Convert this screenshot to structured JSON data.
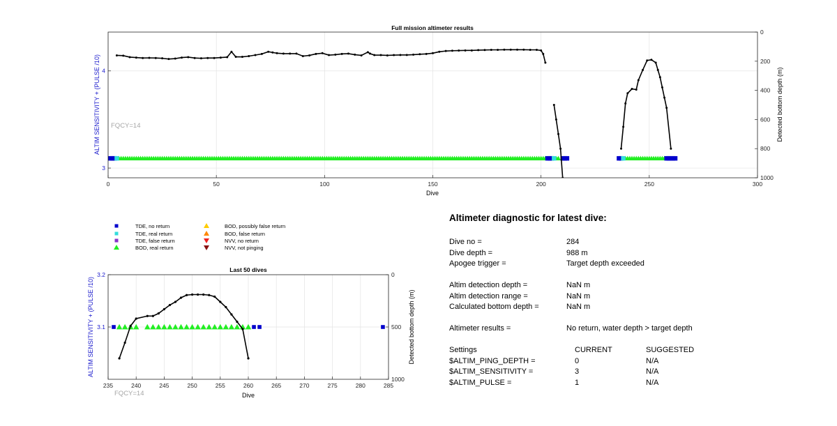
{
  "chart_data": [
    {
      "type": "scatter",
      "title": "Full mission altimeter results",
      "xlabel": "Dive",
      "ylabel": "ALTIM SENSITIVITY + (PULSE /10)",
      "y2label": "Detected bottom depth (m)",
      "xlim": [
        0,
        300
      ],
      "ylim": [
        2.9,
        4.4
      ],
      "y2lim": [
        1000,
        0
      ],
      "xticks": [
        "0",
        "50",
        "100",
        "150",
        "200",
        "250",
        "300"
      ],
      "yticks": [
        "3",
        "4"
      ],
      "y2ticks": [
        "0",
        "200",
        "400",
        "600",
        "800",
        "1000"
      ],
      "grid": true,
      "annotation": "FQCY=14",
      "sensitivity_level": 3.1,
      "tde_no_return_dives": [
        1,
        2,
        3,
        203,
        204,
        205,
        210,
        211,
        212,
        236,
        237,
        258,
        259,
        260,
        261,
        262
      ],
      "tde_real_return_dives": [
        4,
        206,
        238
      ],
      "bod_real_return_dives": {
        "start": 5,
        "end": 202,
        "extra": [
          207,
          208,
          239,
          240,
          241,
          242,
          243,
          244,
          245,
          246,
          247,
          248,
          249,
          250,
          251,
          252,
          253,
          254,
          255,
          256,
          257
        ]
      },
      "bottom_depth_series": [
        {
          "x": [
            4,
            7,
            10,
            13,
            16,
            19,
            22,
            25,
            28,
            31,
            34,
            37,
            40,
            43,
            46,
            49,
            52,
            55,
            57,
            59,
            62,
            65,
            68,
            71,
            74,
            76,
            78,
            81,
            84,
            87,
            90,
            93,
            96,
            99,
            102,
            105,
            108,
            111,
            114,
            117,
            120,
            121,
            123,
            126,
            129,
            132,
            135,
            138,
            141,
            144,
            147,
            150,
            153,
            156,
            159,
            162,
            165,
            168,
            171,
            174,
            177,
            180,
            183,
            186,
            189,
            192,
            195,
            198,
            200,
            201,
            202
          ],
          "y": [
            160,
            162,
            172,
            175,
            178,
            177,
            178,
            180,
            185,
            182,
            175,
            172,
            178,
            180,
            178,
            178,
            175,
            172,
            135,
            170,
            170,
            165,
            158,
            150,
            135,
            140,
            145,
            148,
            148,
            148,
            165,
            160,
            150,
            145,
            158,
            155,
            150,
            148,
            155,
            160,
            138,
            148,
            158,
            158,
            160,
            158,
            157,
            157,
            155,
            152,
            150,
            145,
            135,
            130,
            128,
            127,
            126,
            126,
            124,
            123,
            122,
            122,
            121,
            121,
            121,
            121,
            122,
            122,
            126,
            150,
            210
          ]
        },
        {
          "x": [
            206,
            207,
            208,
            209,
            210
          ],
          "y": [
            500,
            600,
            700,
            800,
            1000
          ]
        },
        {
          "x": [
            237,
            238,
            239,
            240,
            242,
            244,
            245,
            247,
            249,
            251,
            253,
            254,
            255,
            256,
            257,
            258,
            260
          ],
          "y": [
            800,
            650,
            490,
            420,
            390,
            395,
            330,
            260,
            195,
            190,
            210,
            260,
            310,
            380,
            450,
            520,
            800
          ]
        }
      ]
    },
    {
      "type": "scatter",
      "title": "Last 50 dives",
      "xlabel": "Dive",
      "ylabel": "ALTIM SENSITIVITY + (PULSE /10)",
      "y2label": "Detected bottom depth (m)",
      "xlim": [
        235,
        285
      ],
      "ylim": [
        3,
        3.2
      ],
      "y2lim": [
        1000,
        0
      ],
      "xticks": [
        "235",
        "240",
        "245",
        "250",
        "255",
        "260",
        "265",
        "270",
        "275",
        "280",
        "285"
      ],
      "yticks": [
        "3.1",
        "3.2"
      ],
      "y2ticks": [
        "0",
        "500",
        "1000"
      ],
      "grid": true,
      "annotation": "FQCY=14",
      "tde_no_return_dives": [
        236,
        261,
        262,
        284
      ],
      "bod_real_return_dives": [
        237,
        238,
        239,
        240,
        242,
        243,
        244,
        245,
        246,
        247,
        248,
        249,
        250,
        251,
        252,
        253,
        254,
        255,
        256,
        257,
        258,
        259,
        260
      ],
      "bottom_depth_series": [
        {
          "x": [
            237,
            238,
            239,
            240,
            242,
            243,
            244,
            245,
            246,
            247,
            248,
            249,
            250,
            251,
            252,
            253,
            254,
            255,
            256,
            257,
            258,
            259,
            260
          ],
          "y": [
            800,
            650,
            490,
            420,
            395,
            395,
            370,
            330,
            290,
            260,
            220,
            195,
            190,
            190,
            190,
            195,
            210,
            260,
            310,
            380,
            450,
            520,
            800
          ]
        }
      ]
    }
  ],
  "legend": {
    "items": [
      {
        "label": "TDE, no return",
        "symbol": "square",
        "color": "#0000cc"
      },
      {
        "label": "TDE, real return",
        "symbol": "square",
        "color": "#33dddd"
      },
      {
        "label": "TDE, false return",
        "symbol": "square",
        "color": "#8833cc"
      },
      {
        "label": "BOD, real return",
        "symbol": "triangle-up",
        "color": "#22ee22"
      },
      {
        "label": "BOD, possibly false return",
        "symbol": "triangle-up",
        "color": "#ffcc00"
      },
      {
        "label": "BOD, false return",
        "symbol": "triangle-up",
        "color": "#ff8800"
      },
      {
        "label": "NVV, no return",
        "symbol": "triangle-down",
        "color": "#ee2222"
      },
      {
        "label": "NVV, not pinging",
        "symbol": "triangle-down",
        "color": "#881111"
      }
    ]
  },
  "diagnostic": {
    "title": "Altimeter diagnostic for latest dive:",
    "rows": [
      {
        "label": "Dive no =",
        "value": "284"
      },
      {
        "label": "Dive depth =",
        "value": "988 m"
      },
      {
        "label": "Apogee trigger =",
        "value": "Target depth exceeded"
      },
      {
        "label": "Altim detection depth =",
        "value": "NaN m"
      },
      {
        "label": "Altim detection range =",
        "value": "NaN m"
      },
      {
        "label": "Calculated bottom depth =",
        "value": "NaN m"
      },
      {
        "label": "Altimeter results =",
        "value": "No return, water depth > target depth"
      }
    ],
    "settings_header": {
      "label": "Settings",
      "current": "CURRENT",
      "suggested": "SUGGESTED"
    },
    "settings": [
      {
        "label": "$ALTIM_PING_DEPTH =",
        "current": "0",
        "suggested": "N/A"
      },
      {
        "label": "$ALTIM_SENSITIVITY =",
        "current": "3",
        "suggested": "N/A"
      },
      {
        "label": "$ALTIM_PULSE =",
        "current": "1",
        "suggested": "N/A"
      }
    ]
  }
}
